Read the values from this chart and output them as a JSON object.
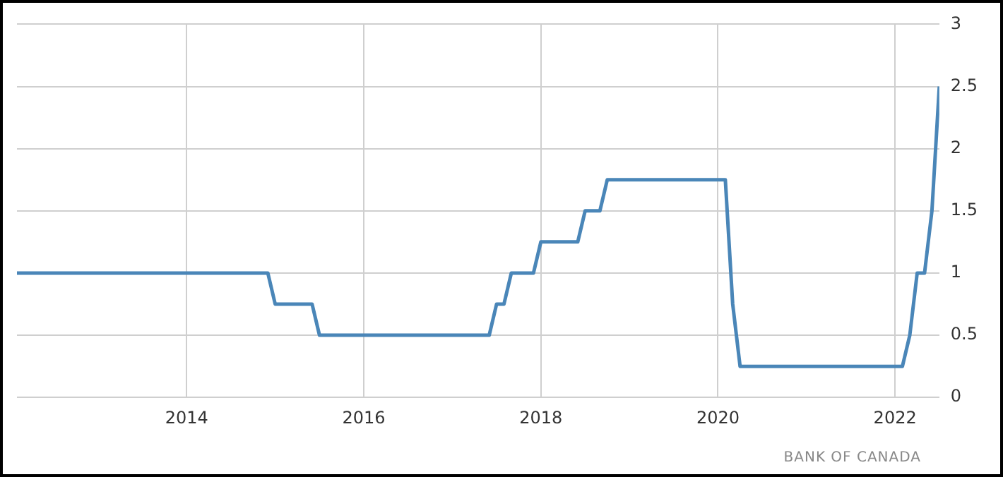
{
  "chart_data": {
    "type": "line",
    "x": [
      "2012-02",
      "2014-12",
      "2015-01",
      "2015-06",
      "2015-07",
      "2017-06",
      "2017-07",
      "2017-08",
      "2017-09",
      "2017-12",
      "2018-01",
      "2018-06",
      "2018-07",
      "2018-09",
      "2018-10",
      "2020-02",
      "2020-03",
      "2020-04",
      "2022-02",
      "2022-03",
      "2022-04",
      "2022-05",
      "2022-06",
      "2022-07"
    ],
    "series": [
      {
        "color": "#4a86b8",
        "values": [
          1,
          1,
          0.75,
          0.75,
          0.5,
          0.5,
          0.75,
          0.75,
          1,
          1,
          1.25,
          1.25,
          1.5,
          1.5,
          1.75,
          1.75,
          0.75,
          0.25,
          0.25,
          0.5,
          1,
          1,
          1.5,
          2.5
        ]
      }
    ],
    "xlim": [
      "2012-02",
      "2022-07"
    ],
    "xticks": [
      "2014",
      "2016",
      "2018",
      "2020",
      "2022"
    ],
    "ylim": [
      0,
      3
    ],
    "yticks": [
      0,
      0.5,
      1,
      1.5,
      2,
      2.5,
      3
    ],
    "grid": true,
    "marker": "none",
    "line_style": "solid",
    "annotations": [
      "BANK OF CANADA"
    ]
  }
}
